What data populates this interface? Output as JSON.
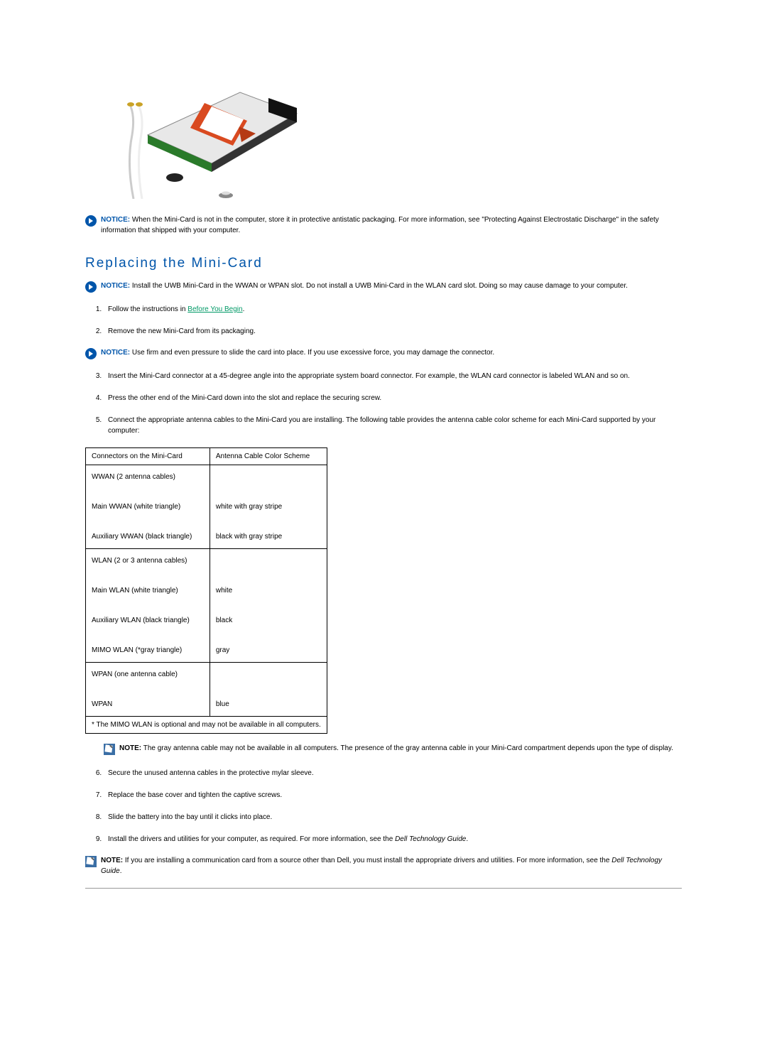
{
  "image_alt": "Mini-Card illustration",
  "notices": {
    "notice1": {
      "label": "NOTICE:",
      "text": "When the Mini-Card is not in the computer, store it in protective antistatic packaging. For more information, see \"Protecting Against Electrostatic Discharge\" in the safety information that shipped with your computer."
    },
    "notice2": {
      "label": "NOTICE:",
      "text": "Install the UWB Mini-Card in the WWAN or WPAN slot. Do not install a UWB Mini-Card in the WLAN card slot. Doing so may cause damage to your computer."
    },
    "notice3": {
      "label": "NOTICE:",
      "text": "Use firm and even pressure to slide the card into place. If you use excessive force, you may damage the connector."
    }
  },
  "section_title": "Replacing the Mini-Card",
  "steps": {
    "s1_pre": "Follow the instructions in ",
    "s1_link": "Before You Begin",
    "s1_post": ".",
    "s2": "Remove the new Mini-Card from its packaging.",
    "s3": "Insert the Mini-Card connector at a 45-degree angle into the appropriate system board connector. For example, the WLAN card connector is labeled WLAN and so on.",
    "s4": "Press the other end of the Mini-Card down into the slot and replace the securing screw.",
    "s5": "Connect the appropriate antenna cables to the Mini-Card you are installing. The following table provides the antenna cable color scheme for each Mini-Card supported by your computer:",
    "s6": "Secure the unused antenna cables in the protective mylar sleeve.",
    "s7": "Replace the base cover and tighten the captive screws.",
    "s8": "Slide the battery into the bay until it clicks into place.",
    "s9_pre": "Install the drivers and utilities for your computer, as required. For more information, see the ",
    "s9_italic": "Dell Technology Guide",
    "s9_post": "."
  },
  "table": {
    "header_left": "Connectors on the Mini-Card",
    "header_right": "Antenna Cable Color Scheme",
    "wwan_block": "WWAN (2 antenna cables)\n\nMain WWAN (white triangle)\n\nAuxiliary WWAN (black triangle)",
    "wwan_colors": " \n\nwhite with gray stripe\n\nblack with gray stripe",
    "wlan_block": "WLAN (2 or 3 antenna cables)\n\nMain WLAN (white triangle)\n\nAuxiliary WLAN (black triangle)\n\nMIMO WLAN (*gray triangle)",
    "wlan_colors": " \n\nwhite\n\nblack\n\ngray",
    "wpan_block": "WPAN (one antenna cable)\n\nWPAN",
    "wpan_colors": " \n\nblue",
    "footnote": "* The MIMO WLAN is optional and may not be available in all computers."
  },
  "nested_note": {
    "label": "NOTE:",
    "text": "The gray antenna cable may not be available in all computers. The presence of the gray antenna cable in your Mini-Card compartment depends upon the type of display."
  },
  "final_note": {
    "label": "NOTE:",
    "pre": "If you are installing a communication card from a source other than Dell, you must install the appropriate drivers and utilities. For more information, see the ",
    "italic": "Dell Technology Guide",
    "post": "."
  },
  "colors": {
    "accent": "#0055aa",
    "link_green": "#009966"
  }
}
